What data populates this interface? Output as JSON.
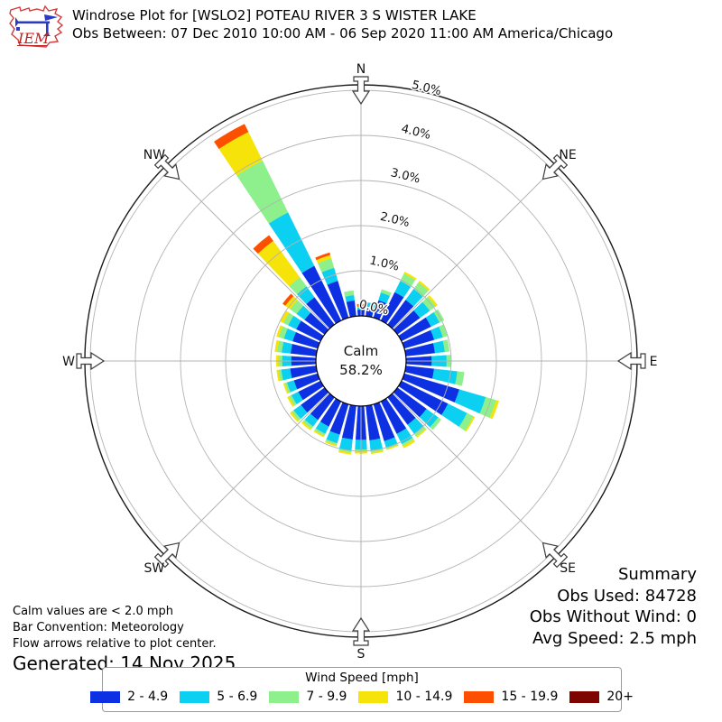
{
  "header": {
    "title": "Windrose Plot for [WSLO2] POTEAU RIVER 3 S WISTER LAKE",
    "subtitle": "Obs Between: 07 Dec 2010 10:00 AM - 06 Sep 2020 11:00 AM America/Chicago",
    "logo": {
      "text": "IEM",
      "outline_color": "#d23b3b",
      "vane_color": "#2b3bc4",
      "text_color": "#c42121"
    }
  },
  "chart_data": {
    "type": "windrose",
    "station": "[WSLO2] POTEAU RIVER 3 S WISTER LAKE",
    "speed_units": "mph",
    "bar_convention": "Meteorology",
    "grid": "on",
    "ring_ticks_pct": [
      0,
      1,
      2,
      3,
      4,
      5
    ],
    "ring_tick_labels": [
      "0.0%",
      "1.0%",
      "2.0%",
      "3.0%",
      "4.0%",
      "5.0%"
    ],
    "max_pct": 5.12,
    "calm": {
      "label": "Calm",
      "value": "58.2%"
    },
    "compass_points": [
      {
        "label": "N",
        "deg": 0
      },
      {
        "label": "NE",
        "deg": 45
      },
      {
        "label": "E",
        "deg": 90
      },
      {
        "label": "SE",
        "deg": 135
      },
      {
        "label": "S",
        "deg": 180
      },
      {
        "label": "SW",
        "deg": 225
      },
      {
        "label": "W",
        "deg": 270
      },
      {
        "label": "NW",
        "deg": 315
      }
    ],
    "directions_deg": [
      0,
      10,
      20,
      30,
      40,
      50,
      60,
      70,
      80,
      90,
      100,
      110,
      120,
      130,
      140,
      150,
      160,
      170,
      180,
      190,
      200,
      210,
      220,
      230,
      240,
      250,
      260,
      270,
      280,
      290,
      300,
      310,
      320,
      330,
      340,
      350
    ],
    "series": [
      {
        "name": "2 - 4.9",
        "color": "#0d30e3",
        "values": [
          0.14,
          0.2,
          0.4,
          0.7,
          0.68,
          0.62,
          0.73,
          0.69,
          0.65,
          0.57,
          0.63,
          1.27,
          1.15,
          0.8,
          0.75,
          0.8,
          0.85,
          0.77,
          0.75,
          0.75,
          0.7,
          0.62,
          0.62,
          0.65,
          0.55,
          0.55,
          0.58,
          0.55,
          0.57,
          0.58,
          0.6,
          0.55,
          0.75,
          1.35,
          0.85,
          0.35
        ]
      },
      {
        "name": "5 - 6.9",
        "color": "#0cd0f2",
        "values": [
          0.05,
          0.1,
          0.18,
          0.28,
          0.3,
          0.27,
          0.21,
          0.2,
          0.22,
          0.33,
          0.52,
          0.61,
          0.47,
          0.32,
          0.25,
          0.25,
          0.15,
          0.23,
          0.22,
          0.25,
          0.2,
          0.18,
          0.18,
          0.2,
          0.17,
          0.16,
          0.2,
          0.2,
          0.2,
          0.2,
          0.2,
          0.22,
          0.3,
          1.32,
          0.3,
          0.12
        ]
      },
      {
        "name": "7 - 9.9",
        "color": "#8df08c",
        "values": [
          0.02,
          0.0,
          0.07,
          0.18,
          0.18,
          0.16,
          0.11,
          0.1,
          0.1,
          0.1,
          0.15,
          0.24,
          0.16,
          0.08,
          0.07,
          0.05,
          0.03,
          0.04,
          0.04,
          0.04,
          0.04,
          0.05,
          0.06,
          0.06,
          0.06,
          0.05,
          0.06,
          0.08,
          0.1,
          0.12,
          0.12,
          0.18,
          0.25,
          1.28,
          0.22,
          0.1
        ]
      },
      {
        "name": "10 - 14.9",
        "color": "#f6e30a",
        "values": [
          0.0,
          0.0,
          0.0,
          0.04,
          0.04,
          0.05,
          0.0,
          0.0,
          0.0,
          0.0,
          0.0,
          0.06,
          0.03,
          0.0,
          0.03,
          0.05,
          0.02,
          0.03,
          0.04,
          0.04,
          0.03,
          0.03,
          0.04,
          0.04,
          0.04,
          0.03,
          0.04,
          0.05,
          0.05,
          0.05,
          0.08,
          0.13,
          1.0,
          0.71,
          0.08,
          0.0
        ]
      },
      {
        "name": "15 - 19.9",
        "color": "#fd4f00",
        "values": [
          0.05,
          0.0,
          0.0,
          0.0,
          0.0,
          0.0,
          0.0,
          0.0,
          0.0,
          0.0,
          0.0,
          0.0,
          0.0,
          0.0,
          0.0,
          0.0,
          0.0,
          0.0,
          0.0,
          0.0,
          0.0,
          0.0,
          0.0,
          0.0,
          0.0,
          0.0,
          0.0,
          0.0,
          0.0,
          0.0,
          0.0,
          0.07,
          0.15,
          0.19,
          0.05,
          0.0
        ]
      },
      {
        "name": "20+",
        "color": "#7e0400",
        "values": [
          0,
          0,
          0,
          0,
          0,
          0,
          0,
          0,
          0,
          0,
          0,
          0,
          0,
          0,
          0,
          0,
          0,
          0,
          0,
          0,
          0,
          0,
          0,
          0,
          0,
          0,
          0,
          0,
          0,
          0,
          0,
          0,
          0,
          0,
          0,
          0
        ]
      }
    ]
  },
  "summary": {
    "title": "Summary",
    "obs_used": "Obs Used: 84728",
    "obs_without_wind": "Obs Without Wind: 0",
    "avg_speed": "Avg Speed: 2.5 mph"
  },
  "notes": [
    "Calm values are < 2.0 mph",
    "Bar Convention: Meteorology",
    "Flow arrows relative to plot center."
  ],
  "generated": "Generated: 14 Nov 2025",
  "legend": {
    "title": "Wind Speed [mph]"
  }
}
